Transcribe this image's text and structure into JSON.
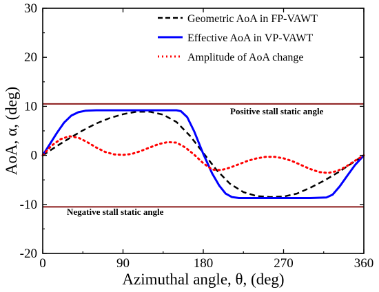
{
  "chart_data": {
    "type": "line",
    "xlabel": "Azimuthal angle, θ, (deg)",
    "ylabel": "AoA, α, (deg)",
    "xlim": [
      0,
      360
    ],
    "ylim": [
      -20,
      30
    ],
    "xticks": [
      0,
      90,
      180,
      270,
      360
    ],
    "yticks": [
      -20,
      -10,
      0,
      10,
      20,
      30
    ],
    "grid": false,
    "legend_position": "top-right",
    "reference_lines": [
      {
        "label": "Positive stall static angle",
        "y": 10.5,
        "color": "#8b1a1a"
      },
      {
        "label": "Negative stall static angle",
        "y": -10.5,
        "color": "#8b1a1a"
      }
    ],
    "series": [
      {
        "name": "Geometric AoA in FP-VAWT",
        "color": "#000000",
        "style": "dashed",
        "x": [
          0,
          15,
          30,
          45,
          60,
          75,
          90,
          105,
          120,
          135,
          150,
          165,
          180,
          195,
          210,
          225,
          240,
          255,
          270,
          285,
          300,
          315,
          330,
          345,
          360
        ],
        "y": [
          0,
          1.8,
          3.5,
          5.1,
          6.5,
          7.6,
          8.4,
          8.9,
          8.9,
          8.3,
          6.8,
          4.0,
          0.5,
          -3.0,
          -5.8,
          -7.5,
          -8.3,
          -8.5,
          -8.4,
          -7.8,
          -6.6,
          -5.2,
          -3.6,
          -1.8,
          0
        ]
      },
      {
        "name": "Effective AoA in VP-VAWT",
        "color": "#0000ff",
        "style": "solid",
        "x": [
          0,
          8,
          16,
          24,
          32,
          40,
          48,
          60,
          90,
          120,
          150,
          155,
          162,
          170,
          180,
          190,
          198,
          205,
          212,
          220,
          240,
          270,
          300,
          318,
          325,
          333,
          342,
          350,
          360
        ],
        "y": [
          0,
          2.3,
          4.6,
          6.7,
          8.1,
          8.8,
          9.1,
          9.2,
          9.2,
          9.2,
          9.2,
          9.0,
          7.8,
          4.8,
          0.3,
          -3.7,
          -6.2,
          -7.8,
          -8.5,
          -8.7,
          -8.7,
          -8.7,
          -8.7,
          -8.6,
          -8.0,
          -6.3,
          -4.0,
          -2.0,
          0
        ]
      },
      {
        "name": "Amplitude of AoA change",
        "color": "#ff0000",
        "style": "dotted",
        "x": [
          0,
          10,
          20,
          30,
          40,
          50,
          60,
          70,
          80,
          90,
          100,
          110,
          120,
          130,
          140,
          150,
          160,
          170,
          180,
          190,
          200,
          210,
          220,
          230,
          240,
          250,
          260,
          270,
          280,
          290,
          300,
          310,
          320,
          330,
          340,
          350,
          360
        ],
        "y": [
          0,
          2.0,
          3.3,
          3.9,
          3.6,
          2.7,
          1.6,
          0.7,
          0.2,
          0.1,
          0.3,
          0.9,
          1.6,
          2.3,
          2.7,
          2.6,
          1.6,
          0.1,
          -1.6,
          -2.9,
          -3.0,
          -2.5,
          -1.8,
          -1.1,
          -0.6,
          -0.3,
          -0.3,
          -0.6,
          -1.2,
          -2.0,
          -2.8,
          -3.4,
          -3.6,
          -3.2,
          -2.3,
          -1.1,
          0
        ]
      }
    ]
  }
}
